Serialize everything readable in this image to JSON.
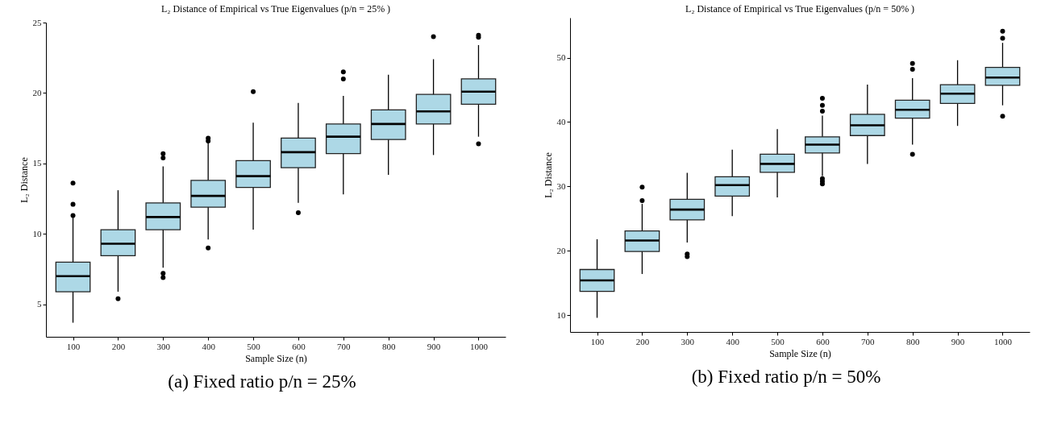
{
  "chart_data": [
    {
      "type": "box",
      "title": "L₂ Distance of Empirical vs True Eigenvalues (p/n =  25% )",
      "xlabel": "Sample Size (n)",
      "ylabel": "L₂ Distance",
      "categories": [
        "100",
        "200",
        "300",
        "400",
        "500",
        "600",
        "700",
        "800",
        "900",
        "1000"
      ],
      "ylim": [
        2.7,
        25
      ],
      "yticks": [
        5,
        10,
        15,
        20,
        25
      ],
      "grid": false,
      "annotations": [
        "(a) Fixed ratio p/n = 25%"
      ],
      "series": [
        {
          "color": "#add8e6",
          "boxes": [
            {
              "low": 3.7,
              "q1": 5.9,
              "median": 7.0,
              "q3": 8.0,
              "high": 11.2,
              "outliers": [
                11.3,
                12.1,
                13.6
              ]
            },
            {
              "low": 5.9,
              "q1": 8.45,
              "median": 9.3,
              "q3": 10.3,
              "high": 13.1,
              "outliers": [
                5.4
              ]
            },
            {
              "low": 7.6,
              "q1": 10.3,
              "median": 11.2,
              "q3": 12.2,
              "high": 14.8,
              "outliers": [
                7.2,
                6.9,
                15.4,
                15.7
              ]
            },
            {
              "low": 9.6,
              "q1": 11.9,
              "median": 12.7,
              "q3": 13.8,
              "high": 16.5,
              "outliers": [
                9.0,
                16.6,
                16.8
              ]
            },
            {
              "low": 10.3,
              "q1": 13.3,
              "median": 14.1,
              "q3": 15.2,
              "high": 17.9,
              "outliers": [
                20.1
              ]
            },
            {
              "low": 12.2,
              "q1": 14.7,
              "median": 15.8,
              "q3": 16.8,
              "high": 19.3,
              "outliers": [
                11.5
              ]
            },
            {
              "low": 12.8,
              "q1": 15.7,
              "median": 16.9,
              "q3": 17.8,
              "high": 19.8,
              "outliers": [
                21.0,
                21.5
              ]
            },
            {
              "low": 14.2,
              "q1": 16.7,
              "median": 17.8,
              "q3": 18.8,
              "high": 21.3
            },
            {
              "low": 15.6,
              "q1": 17.8,
              "median": 18.7,
              "q3": 19.9,
              "high": 22.4,
              "outliers": [
                24.0
              ]
            },
            {
              "low": 16.9,
              "q1": 19.2,
              "median": 20.1,
              "q3": 21.0,
              "high": 23.4,
              "outliers": [
                16.4,
                23.95,
                24.1
              ]
            }
          ]
        }
      ]
    },
    {
      "type": "box",
      "title": "L₂ Distance of Empirical vs True Eigenvalues (p/n =  50% )",
      "xlabel": "Sample Size (n)",
      "ylabel": "L₂ Distance",
      "categories": [
        "100",
        "200",
        "300",
        "400",
        "500",
        "600",
        "700",
        "800",
        "900",
        "1000"
      ],
      "ylim": [
        7.4,
        56.2
      ],
      "yticks": [
        10,
        20,
        30,
        40,
        50
      ],
      "grid": false,
      "annotations": [
        "(b) Fixed ratio p/n = 50%"
      ],
      "series": [
        {
          "color": "#add8e6",
          "boxes": [
            {
              "low": 9.6,
              "q1": 13.7,
              "median": 15.4,
              "q3": 17.1,
              "high": 21.8
            },
            {
              "low": 16.4,
              "q1": 19.9,
              "median": 21.6,
              "q3": 23.1,
              "high": 27.3,
              "outliers": [
                27.8,
                29.9
              ]
            },
            {
              "low": 21.3,
              "q1": 24.8,
              "median": 26.4,
              "q3": 28.0,
              "high": 32.1,
              "outliers": [
                19.5,
                19.1
              ]
            },
            {
              "low": 25.4,
              "q1": 28.5,
              "median": 30.2,
              "q3": 31.5,
              "high": 35.7
            },
            {
              "low": 28.3,
              "q1": 32.2,
              "median": 33.5,
              "q3": 35.0,
              "high": 38.9
            },
            {
              "low": 31.6,
              "q1": 35.2,
              "median": 36.5,
              "q3": 37.7,
              "high": 41.0,
              "outliers": [
                30.4,
                30.8,
                31.2,
                41.7,
                42.6,
                43.7
              ]
            },
            {
              "low": 33.5,
              "q1": 37.9,
              "median": 39.5,
              "q3": 41.2,
              "high": 45.8
            },
            {
              "low": 36.5,
              "q1": 40.6,
              "median": 41.9,
              "q3": 43.4,
              "high": 46.8,
              "outliers": [
                35.0,
                48.2,
                49.1
              ]
            },
            {
              "low": 39.4,
              "q1": 42.9,
              "median": 44.4,
              "q3": 45.8,
              "high": 49.6
            },
            {
              "low": 42.6,
              "q1": 45.7,
              "median": 46.9,
              "q3": 48.5,
              "high": 52.3,
              "outliers": [
                40.9,
                53.0,
                54.1
              ]
            }
          ]
        }
      ]
    }
  ]
}
